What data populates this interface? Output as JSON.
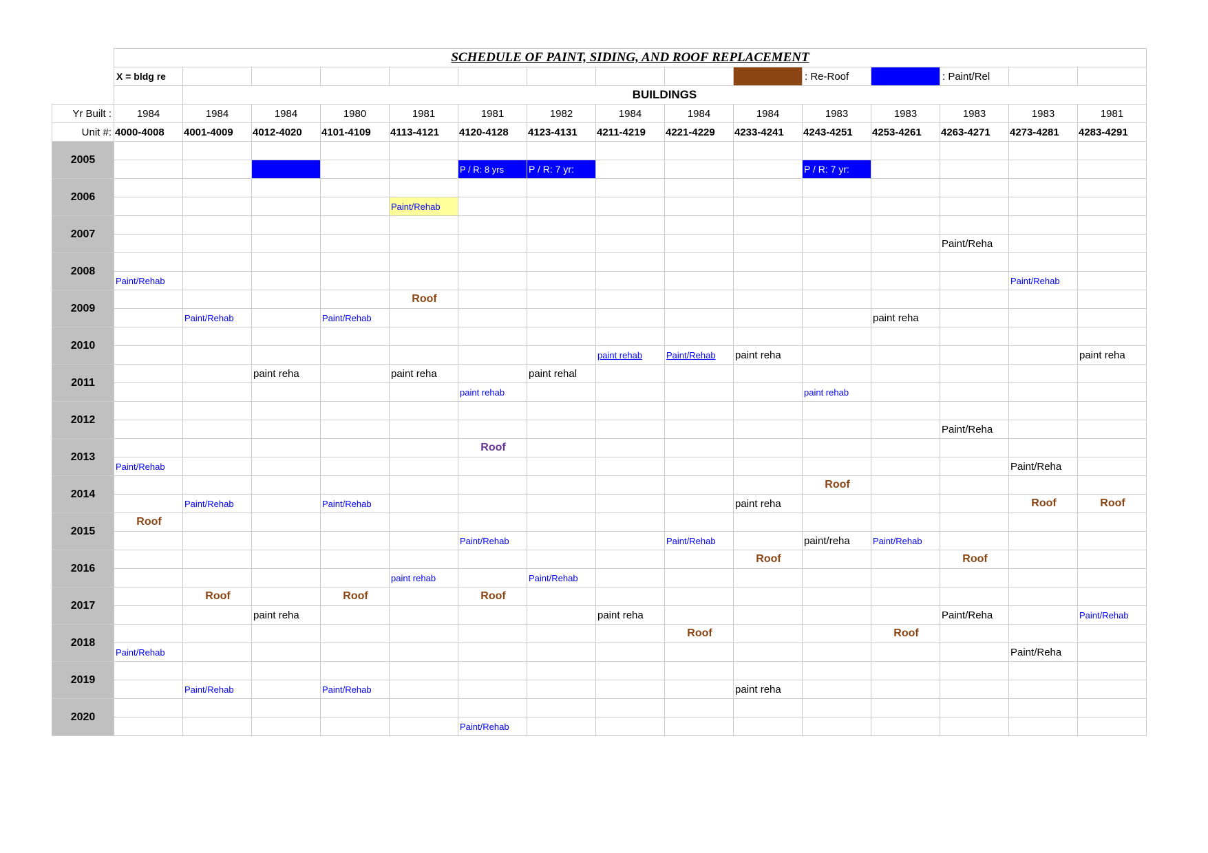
{
  "title": "SCHEDULE OF PAINT, SIDING, AND ROOF REPLACEMENT",
  "legendNote": "X = bldg re",
  "legendReRoofLabel": ": Re-Roof",
  "legendPaintLabel": ": Paint/Rel",
  "buildingsLabel": "BUILDINGS",
  "yrBuiltLabel": "Yr  Built :",
  "unitLabel": "Unit #:",
  "yearBuilt": [
    "1984",
    "1984",
    "1984",
    "1980",
    "1981",
    "1981",
    "1982",
    "1984",
    "1984",
    "1984",
    "1983",
    "1983",
    "1983",
    "1983",
    "1981"
  ],
  "unitRanges": [
    "4000-4008",
    "4001-4009",
    "4012-4020",
    "4101-4109",
    "4113-4121",
    "4120-4128",
    "4123-4131",
    "4211-4219",
    "4221-4229",
    "4233-4241",
    "4243-4251",
    "4253-4261",
    "4263-4271",
    "4273-4281",
    "4283-4291"
  ],
  "yearRows": [
    "2005",
    "2006",
    "2007",
    "2008",
    "2009",
    "2010",
    "2011",
    "2012",
    "2013",
    "2014",
    "2015",
    "2016",
    "2017",
    "2018",
    "2019",
    "2020"
  ],
  "colors": {
    "reRoofSwatch": "#8B4513",
    "paintSwatch": "#0000FF",
    "blueFill": "#0000FF",
    "blueFillText": "#FFFFFF",
    "yellowFill": "#FFFF99",
    "roofText": "#8B4513",
    "blueText": "#0000FF",
    "purpleRoof": "#663399",
    "blackText": "#000000",
    "hdrGray": "#C0C0C0"
  },
  "cells": {
    "r2005b": {
      "c2": {
        "bg": "blueFill"
      },
      "c5": {
        "bg": "blueFill",
        "color": "blueFillText",
        "text": "P / R: 8 yrs",
        "size": 13
      },
      "c6": {
        "bg": "blueFill",
        "color": "blueFillText",
        "text": "P / R: 7 yr:",
        "size": 14
      },
      "c10": {
        "bg": "blueFill",
        "color": "blueFillText",
        "text": "P / R: 7 yr:",
        "size": 14
      }
    },
    "r2006b": {
      "c4": {
        "bg": "yellowFill",
        "color": "blueText",
        "text": "Paint/Rehab",
        "size": 13
      }
    },
    "r2007b": {
      "c12": {
        "color": "blackText",
        "text": "Paint/Reha",
        "size": 15
      }
    },
    "r2008b": {
      "c0": {
        "color": "blueText",
        "text": "Paint/Rehab",
        "size": 13
      },
      "c13": {
        "color": "blueText",
        "text": "Paint/Rehab",
        "size": 13
      }
    },
    "r2009a": {
      "c4": {
        "color": "roofText",
        "text": "Roof",
        "size": 16,
        "bold": true,
        "center": true
      }
    },
    "r2009b": {
      "c1": {
        "color": "blueText",
        "text": "Paint/Rehab",
        "size": 13
      },
      "c3": {
        "color": "blueText",
        "text": "Paint/Rehab",
        "size": 13
      },
      "c11": {
        "color": "blackText",
        "text": "paint reha",
        "size": 15
      }
    },
    "r2010b": {
      "c7": {
        "color": "blueText",
        "text": "paint rehab",
        "size": 13,
        "under": true
      },
      "c8": {
        "color": "blueText",
        "text": "Paint/Rehab",
        "size": 13,
        "under": true
      },
      "c9": {
        "color": "blackText",
        "text": "paint reha",
        "size": 15
      },
      "c14": {
        "color": "blackText",
        "text": "paint reha",
        "size": 15
      }
    },
    "r2011a": {
      "c2": {
        "color": "blackText",
        "text": "paint reha",
        "size": 15
      },
      "c4": {
        "color": "blackText",
        "text": "paint reha",
        "size": 15
      },
      "c6": {
        "color": "blackText",
        "text": "paint rehal",
        "size": 15
      }
    },
    "r2011b": {
      "c5": {
        "color": "blueText",
        "text": "paint rehab",
        "size": 13
      },
      "c10": {
        "color": "blueText",
        "text": "paint rehab",
        "size": 13
      }
    },
    "r2012b": {
      "c12": {
        "color": "blackText",
        "text": "Paint/Reha",
        "size": 15
      }
    },
    "r2013a": {
      "c5": {
        "color": "purpleRoof",
        "text": "Roof",
        "size": 16,
        "bold": true,
        "center": true
      }
    },
    "r2013b": {
      "c0": {
        "color": "blueText",
        "text": "Paint/Rehab",
        "size": 13
      },
      "c13": {
        "color": "blackText",
        "text": "Paint/Reha",
        "size": 15
      }
    },
    "r2014a": {
      "c10": {
        "color": "roofText",
        "text": "Roof",
        "size": 16,
        "bold": true,
        "center": true
      }
    },
    "r2014b": {
      "c1": {
        "color": "blueText",
        "text": "Paint/Rehab",
        "size": 13
      },
      "c3": {
        "color": "blueText",
        "text": "Paint/Rehab",
        "size": 13
      },
      "c9": {
        "color": "blackText",
        "text": "paint reha",
        "size": 15
      },
      "c13": {
        "color": "roofText",
        "text": "Roof",
        "size": 16,
        "bold": true,
        "center": true
      },
      "c14": {
        "color": "roofText",
        "text": "Roof",
        "size": 16,
        "bold": true,
        "center": true
      }
    },
    "r2015a": {
      "c0": {
        "color": "roofText",
        "text": "Roof",
        "size": 16,
        "bold": true,
        "center": true
      }
    },
    "r2015b": {
      "c5": {
        "color": "blueText",
        "text": "Paint/Rehab",
        "size": 13
      },
      "c8": {
        "color": "blueText",
        "text": "Paint/Rehab",
        "size": 13
      },
      "c10": {
        "color": "blackText",
        "text": "paint/reha",
        "size": 15
      },
      "c11": {
        "color": "blueText",
        "text": "Paint/Rehab",
        "size": 13
      }
    },
    "r2016a": {
      "c9": {
        "color": "roofText",
        "text": "Roof",
        "size": 16,
        "bold": true,
        "center": true
      },
      "c12": {
        "color": "roofText",
        "text": "Roof",
        "size": 16,
        "bold": true,
        "center": true
      }
    },
    "r2016b": {
      "c4": {
        "color": "blueText",
        "text": "paint rehab",
        "size": 13
      },
      "c6": {
        "color": "blueText",
        "text": "Paint/Rehab",
        "size": 13
      }
    },
    "r2017a": {
      "c1": {
        "color": "roofText",
        "text": "Roof",
        "size": 16,
        "bold": true,
        "center": true
      },
      "c3": {
        "color": "roofText",
        "text": "Roof",
        "size": 16,
        "bold": true,
        "center": true
      },
      "c5": {
        "color": "roofText",
        "text": "Roof",
        "size": 16,
        "bold": true,
        "center": true
      }
    },
    "r2017b": {
      "c2": {
        "color": "blackText",
        "text": "paint reha",
        "size": 15
      },
      "c7": {
        "color": "blackText",
        "text": "paint reha",
        "size": 15
      },
      "c12": {
        "color": "blackText",
        "text": "Paint/Reha",
        "size": 15
      },
      "c14": {
        "color": "blueText",
        "text": "Paint/Rehab",
        "size": 13
      }
    },
    "r2018a": {
      "c8": {
        "color": "roofText",
        "text": "Roof",
        "size": 16,
        "bold": true,
        "center": true
      },
      "c11": {
        "color": "roofText",
        "text": "Roof",
        "size": 16,
        "bold": true,
        "center": true
      }
    },
    "r2018b": {
      "c0": {
        "color": "blueText",
        "text": "Paint/Rehab",
        "size": 13
      },
      "c13": {
        "color": "blackText",
        "text": "Paint/Reha",
        "size": 15
      }
    },
    "r2019b": {
      "c1": {
        "color": "blueText",
        "text": "Paint/Rehab",
        "size": 13
      },
      "c3": {
        "color": "blueText",
        "text": "Paint/Rehab",
        "size": 13
      },
      "c9": {
        "color": "blackText",
        "text": "paint reha",
        "size": 15
      }
    },
    "r2020b": {
      "c5": {
        "color": "blueText",
        "text": "Paint/Rehab",
        "size": 13
      }
    }
  }
}
